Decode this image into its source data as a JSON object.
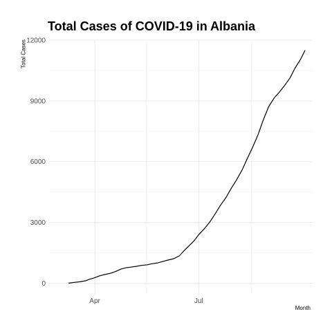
{
  "chart_data": {
    "type": "line",
    "title": "Total Cases of COVID-19 in Albania",
    "xlabel": "Month",
    "ylabel": "Total Cases",
    "x_tick_labels": [
      "Apr",
      "Jul"
    ],
    "x_ticks": [
      "2020-04-01",
      "2020-07-01"
    ],
    "x_minor_ticks": [
      "2020-05-16",
      "2020-08-16"
    ],
    "xlim": [
      "2020-02-21",
      "2020-10-08"
    ],
    "y_ticks": [
      0,
      3000,
      6000,
      9000,
      12000
    ],
    "y_tick_labels": [
      "0",
      "3000",
      "6000",
      "9000",
      "12000"
    ],
    "ylim": [
      -600,
      12000
    ],
    "grid": true,
    "legend": "none",
    "line_color": "#000000",
    "series": [
      {
        "x": [
          "2020-03-09",
          "2020-03-14",
          "2020-03-19",
          "2020-03-24",
          "2020-03-27",
          "2020-03-31",
          "2020-04-05",
          "2020-04-09",
          "2020-04-14",
          "2020-04-19",
          "2020-04-24",
          "2020-04-28",
          "2020-05-02",
          "2020-05-07",
          "2020-05-12",
          "2020-05-17",
          "2020-05-21",
          "2020-05-26",
          "2020-05-31",
          "2020-06-04",
          "2020-06-09",
          "2020-06-14",
          "2020-06-18",
          "2020-06-22",
          "2020-06-27",
          "2020-07-01",
          "2020-07-06",
          "2020-07-11",
          "2020-07-15",
          "2020-07-20",
          "2020-07-25",
          "2020-07-29",
          "2020-08-03",
          "2020-08-08",
          "2020-08-12",
          "2020-08-17",
          "2020-08-22",
          "2020-08-26",
          "2020-08-31",
          "2020-09-05",
          "2020-09-09",
          "2020-09-14",
          "2020-09-19",
          "2020-09-23",
          "2020-09-28",
          "2020-10-02"
        ],
        "y": [
          2,
          40,
          70,
          120,
          190,
          250,
          360,
          420,
          480,
          570,
          700,
          760,
          790,
          830,
          880,
          910,
          960,
          1000,
          1080,
          1140,
          1210,
          1350,
          1600,
          1820,
          2100,
          2400,
          2700,
          3050,
          3400,
          3850,
          4250,
          4650,
          5100,
          5600,
          6100,
          6700,
          7350,
          8000,
          8700,
          9150,
          9400,
          9750,
          10150,
          10600,
          11050,
          11500
        ]
      }
    ]
  }
}
